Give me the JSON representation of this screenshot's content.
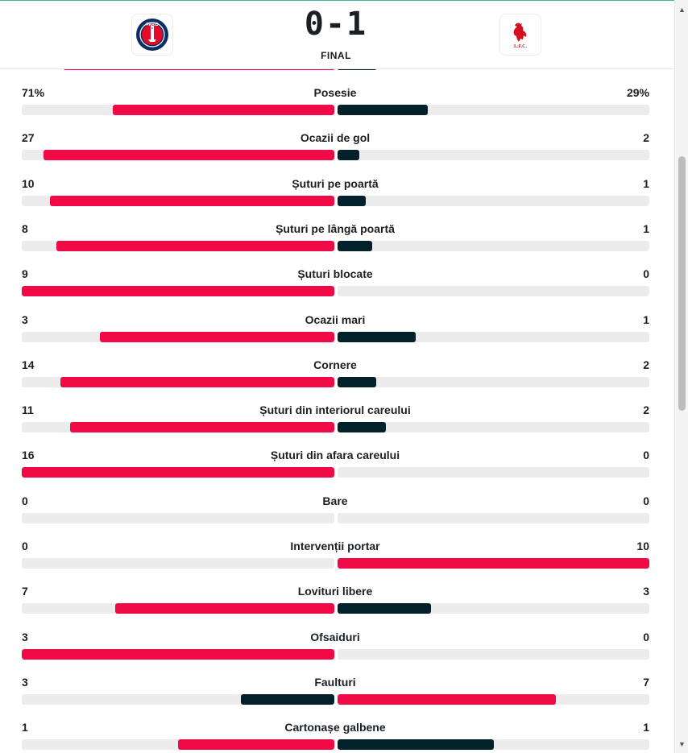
{
  "header": {
    "home_logo_text": "PARIS",
    "away_logo_text": "L.F.C.",
    "score": "0-1",
    "status": "FINAL"
  },
  "colors": {
    "home": "#ef0a46",
    "away": "#03212a",
    "track": "#ececec"
  },
  "stats": [
    {
      "label": "Posesie",
      "home": "71%",
      "away": "29%",
      "home_val": 71,
      "away_val": 29
    },
    {
      "label": "Ocazii de gol",
      "home": "27",
      "away": "2",
      "home_val": 27,
      "away_val": 2
    },
    {
      "label": "Șuturi pe poartă",
      "home": "10",
      "away": "1",
      "home_val": 10,
      "away_val": 1
    },
    {
      "label": "Șuturi pe lângă poartă",
      "home": "8",
      "away": "1",
      "home_val": 8,
      "away_val": 1
    },
    {
      "label": "Șuturi blocate",
      "home": "9",
      "away": "0",
      "home_val": 9,
      "away_val": 0
    },
    {
      "label": "Ocazii mari",
      "home": "3",
      "away": "1",
      "home_val": 3,
      "away_val": 1
    },
    {
      "label": "Cornere",
      "home": "14",
      "away": "2",
      "home_val": 14,
      "away_val": 2
    },
    {
      "label": "Șuturi din interiorul careului",
      "home": "11",
      "away": "2",
      "home_val": 11,
      "away_val": 2
    },
    {
      "label": "Șuturi din afara careului",
      "home": "16",
      "away": "0",
      "home_val": 16,
      "away_val": 0
    },
    {
      "label": "Bare",
      "home": "0",
      "away": "0",
      "home_val": 0,
      "away_val": 0
    },
    {
      "label": "Intervenții portar",
      "home": "0",
      "away": "10",
      "home_val": 0,
      "away_val": 10
    },
    {
      "label": "Lovituri libere",
      "home": "7",
      "away": "3",
      "home_val": 7,
      "away_val": 3
    },
    {
      "label": "Ofsaiduri",
      "home": "3",
      "away": "0",
      "home_val": 3,
      "away_val": 0
    },
    {
      "label": "Faulturi",
      "home": "3",
      "away": "7",
      "home_val": 3,
      "away_val": 7
    },
    {
      "label": "Cartonașe galbene",
      "home": "1",
      "away": "1",
      "home_val": 1,
      "away_val": 1
    }
  ]
}
